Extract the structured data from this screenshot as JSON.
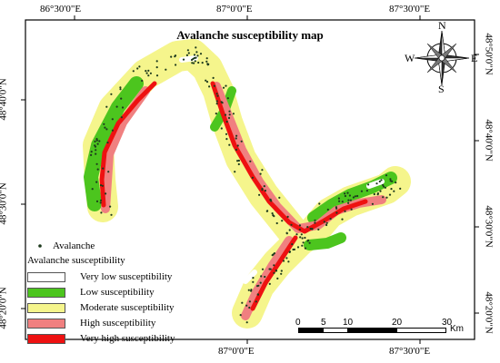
{
  "title": "Avalanche susceptibility map",
  "axes": {
    "top_ticks": [
      "86°30'0\"E",
      "87°0'0\"E",
      "87°30'0\"E"
    ],
    "bottom_ticks": [
      "87°0'0\"E",
      "87°30'0\"E"
    ],
    "left_ticks": [
      "48°40'0\"N",
      "48°30'0\"N",
      "48°20'0\"N"
    ],
    "right_ticks": [
      "48°50'0\"N",
      "48°40'0\"N",
      "48°30'0\"N",
      "48°20'0\"N"
    ]
  },
  "compass": {
    "n": "N",
    "s": "S",
    "e": "E",
    "w": "W"
  },
  "legend": {
    "point_label": "Avalanche",
    "group_title": "Avalanche susceptibility",
    "classes": [
      {
        "label": "Very low susceptibility",
        "color": "#ffffff"
      },
      {
        "label": "Low susceptibility",
        "color": "#4cc51e"
      },
      {
        "label": "Moderate susceptibility",
        "color": "#f5f58c"
      },
      {
        "label": "High susceptibility",
        "color": "#f08080"
      },
      {
        "label": "Very high susceptibility",
        "color": "#ee1111"
      }
    ]
  },
  "scalebar": {
    "ticks": [
      "0",
      "5",
      "10",
      "20",
      "30"
    ],
    "unit": "Km"
  },
  "colors": {
    "point": "#1d3a1d",
    "frame": "#000000"
  }
}
